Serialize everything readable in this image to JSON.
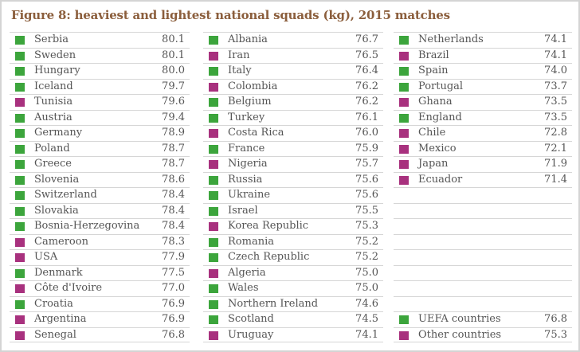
{
  "title": "Figure 8: heaviest and lightest national squads (kg), 2015 matches",
  "colors": {
    "uefa": "#3ca53c",
    "other": "#a8317e",
    "title": "#8b5e3c",
    "rule": "#d6d6d6"
  },
  "columns": [
    {
      "rows": [
        {
          "name": "Serbia",
          "value": "80.1",
          "group": "uefa"
        },
        {
          "name": "Sweden",
          "value": "80.1",
          "group": "uefa"
        },
        {
          "name": "Hungary",
          "value": "80.0",
          "group": "uefa"
        },
        {
          "name": "Iceland",
          "value": "79.7",
          "group": "uefa"
        },
        {
          "name": "Tunisia",
          "value": "79.6",
          "group": "other"
        },
        {
          "name": "Austria",
          "value": "79.4",
          "group": "uefa"
        },
        {
          "name": "Germany",
          "value": "78.9",
          "group": "uefa"
        },
        {
          "name": "Poland",
          "value": "78.7",
          "group": "uefa"
        },
        {
          "name": "Greece",
          "value": "78.7",
          "group": "uefa"
        },
        {
          "name": "Slovenia",
          "value": "78.6",
          "group": "uefa"
        },
        {
          "name": "Switzerland",
          "value": "78.4",
          "group": "uefa"
        },
        {
          "name": "Slovakia",
          "value": "78.4",
          "group": "uefa"
        },
        {
          "name": "Bosnia-Herzegovina",
          "value": "78.4",
          "group": "uefa"
        },
        {
          "name": "Cameroon",
          "value": "78.3",
          "group": "other"
        },
        {
          "name": "USA",
          "value": "77.9",
          "group": "other"
        },
        {
          "name": "Denmark",
          "value": "77.5",
          "group": "uefa"
        },
        {
          "name": "Côte d'Ivoire",
          "value": "77.0",
          "group": "other"
        },
        {
          "name": "Croatia",
          "value": "76.9",
          "group": "uefa"
        },
        {
          "name": "Argentina",
          "value": "76.9",
          "group": "other"
        },
        {
          "name": "Senegal",
          "value": "76.8",
          "group": "other"
        }
      ]
    },
    {
      "rows": [
        {
          "name": "Albania",
          "value": "76.7",
          "group": "uefa"
        },
        {
          "name": "Iran",
          "value": "76.5",
          "group": "other"
        },
        {
          "name": "Italy",
          "value": "76.4",
          "group": "uefa"
        },
        {
          "name": "Colombia",
          "value": "76.2",
          "group": "other"
        },
        {
          "name": "Belgium",
          "value": "76.2",
          "group": "uefa"
        },
        {
          "name": "Turkey",
          "value": "76.1",
          "group": "uefa"
        },
        {
          "name": "Costa Rica",
          "value": "76.0",
          "group": "other"
        },
        {
          "name": "France",
          "value": "75.9",
          "group": "uefa"
        },
        {
          "name": "Nigeria",
          "value": "75.7",
          "group": "other"
        },
        {
          "name": "Russia",
          "value": "75.6",
          "group": "uefa"
        },
        {
          "name": "Ukraine",
          "value": "75.6",
          "group": "uefa"
        },
        {
          "name": "Israel",
          "value": "75.5",
          "group": "uefa"
        },
        {
          "name": "Korea Republic",
          "value": "75.3",
          "group": "other"
        },
        {
          "name": "Romania",
          "value": "75.2",
          "group": "uefa"
        },
        {
          "name": "Czech Republic",
          "value": "75.2",
          "group": "uefa"
        },
        {
          "name": "Algeria",
          "value": "75.0",
          "group": "other"
        },
        {
          "name": "Wales",
          "value": "75.0",
          "group": "uefa"
        },
        {
          "name": "Northern Ireland",
          "value": "74.6",
          "group": "uefa"
        },
        {
          "name": "Scotland",
          "value": "74.5",
          "group": "uefa"
        },
        {
          "name": "Uruguay",
          "value": "74.1",
          "group": "other"
        }
      ]
    },
    {
      "rows": [
        {
          "name": "Netherlands",
          "value": "74.1",
          "group": "uefa"
        },
        {
          "name": "Brazil",
          "value": "74.1",
          "group": "other"
        },
        {
          "name": "Spain",
          "value": "74.0",
          "group": "uefa"
        },
        {
          "name": "Portugal",
          "value": "73.7",
          "group": "uefa"
        },
        {
          "name": "Ghana",
          "value": "73.5",
          "group": "other"
        },
        {
          "name": "England",
          "value": "73.5",
          "group": "uefa"
        },
        {
          "name": "Chile",
          "value": "72.8",
          "group": "other"
        },
        {
          "name": "Mexico",
          "value": "72.1",
          "group": "other"
        },
        {
          "name": "Japan",
          "value": "71.9",
          "group": "other"
        },
        {
          "name": "Ecuador",
          "value": "71.4",
          "group": "other"
        },
        {
          "name": "",
          "value": "",
          "group": ""
        },
        {
          "name": "",
          "value": "",
          "group": ""
        },
        {
          "name": "",
          "value": "",
          "group": ""
        },
        {
          "name": "",
          "value": "",
          "group": ""
        },
        {
          "name": "",
          "value": "",
          "group": ""
        },
        {
          "name": "",
          "value": "",
          "group": ""
        },
        {
          "name": "",
          "value": "",
          "group": ""
        },
        {
          "name": "",
          "value": "",
          "group": ""
        },
        {
          "name": "UEFA countries",
          "value": "76.8",
          "group": "uefa"
        },
        {
          "name": "Other countries",
          "value": "75.3",
          "group": "other"
        }
      ]
    }
  ],
  "chart_data": {
    "type": "table",
    "title": "Figure 8: heaviest and lightest national squads (kg), 2015 matches",
    "legend": [
      {
        "label": "UEFA countries",
        "color": "#3ca53c",
        "average": 76.8
      },
      {
        "label": "Other countries",
        "color": "#a8317e",
        "average": 75.3
      }
    ],
    "unit": "kg",
    "categories": [
      "Serbia",
      "Sweden",
      "Hungary",
      "Iceland",
      "Tunisia",
      "Austria",
      "Germany",
      "Poland",
      "Greece",
      "Slovenia",
      "Switzerland",
      "Slovakia",
      "Bosnia-Herzegovina",
      "Cameroon",
      "USA",
      "Denmark",
      "Côte d'Ivoire",
      "Croatia",
      "Argentina",
      "Senegal",
      "Albania",
      "Iran",
      "Italy",
      "Colombia",
      "Belgium",
      "Turkey",
      "Costa Rica",
      "France",
      "Nigeria",
      "Russia",
      "Ukraine",
      "Israel",
      "Korea Republic",
      "Romania",
      "Czech Republic",
      "Algeria",
      "Wales",
      "Northern Ireland",
      "Scotland",
      "Uruguay",
      "Netherlands",
      "Brazil",
      "Spain",
      "Portugal",
      "Ghana",
      "England",
      "Chile",
      "Mexico",
      "Japan",
      "Ecuador"
    ],
    "values": [
      80.1,
      80.1,
      80.0,
      79.7,
      79.6,
      79.4,
      78.9,
      78.7,
      78.7,
      78.6,
      78.4,
      78.4,
      78.4,
      78.3,
      77.9,
      77.5,
      77.0,
      76.9,
      76.9,
      76.8,
      76.7,
      76.5,
      76.4,
      76.2,
      76.2,
      76.1,
      76.0,
      75.9,
      75.7,
      75.6,
      75.6,
      75.5,
      75.3,
      75.2,
      75.2,
      75.0,
      75.0,
      74.6,
      74.5,
      74.1,
      74.1,
      74.1,
      74.0,
      73.7,
      73.5,
      73.5,
      72.8,
      72.1,
      71.9,
      71.4
    ],
    "groups": [
      "uefa",
      "uefa",
      "uefa",
      "uefa",
      "other",
      "uefa",
      "uefa",
      "uefa",
      "uefa",
      "uefa",
      "uefa",
      "uefa",
      "uefa",
      "other",
      "other",
      "uefa",
      "other",
      "uefa",
      "other",
      "other",
      "uefa",
      "other",
      "uefa",
      "other",
      "uefa",
      "uefa",
      "other",
      "uefa",
      "other",
      "uefa",
      "uefa",
      "uefa",
      "other",
      "uefa",
      "uefa",
      "other",
      "uefa",
      "uefa",
      "uefa",
      "other",
      "uefa",
      "other",
      "uefa",
      "uefa",
      "other",
      "uefa",
      "other",
      "other",
      "other",
      "other"
    ]
  }
}
